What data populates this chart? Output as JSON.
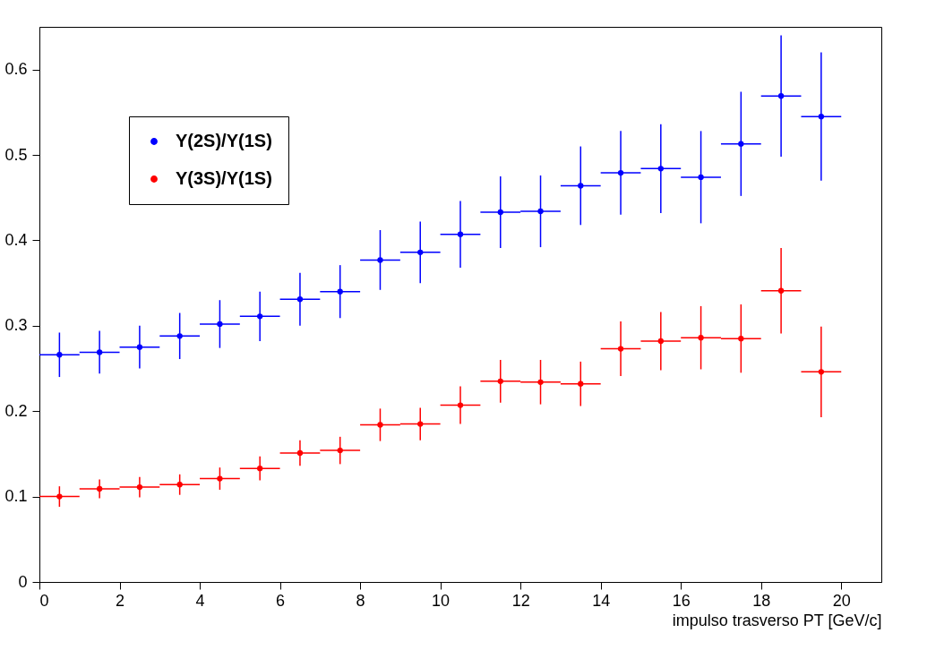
{
  "chart_data": {
    "type": "scatter",
    "xlabel": "impulso trasverso PT [GeV/c]",
    "x": [
      0.5,
      1.5,
      2.5,
      3.5,
      4.5,
      5.5,
      6.5,
      7.5,
      8.5,
      9.5,
      10.5,
      11.5,
      12.5,
      13.5,
      14.5,
      15.5,
      16.5,
      17.5,
      18.5,
      19.5
    ],
    "xlim": [
      0,
      21
    ],
    "ylim": [
      0,
      0.65
    ],
    "xticks": [
      0,
      2,
      4,
      6,
      8,
      10,
      12,
      14,
      16,
      18,
      20
    ],
    "yticks": [
      0,
      0.1,
      0.2,
      0.3,
      0.4,
      0.5,
      0.6
    ],
    "grid": false,
    "legend": "top left",
    "marker": "circle",
    "series": [
      {
        "name": "Υ(2S)/Υ(1S)",
        "color": "#0000ff",
        "values": [
          0.266,
          0.269,
          0.275,
          0.288,
          0.302,
          0.311,
          0.331,
          0.34,
          0.377,
          0.386,
          0.407,
          0.433,
          0.434,
          0.464,
          0.479,
          0.484,
          0.474,
          0.513,
          0.569,
          0.545
        ],
        "errors": [
          0.026,
          0.025,
          0.025,
          0.027,
          0.028,
          0.029,
          0.031,
          0.031,
          0.035,
          0.036,
          0.039,
          0.042,
          0.042,
          0.046,
          0.049,
          0.052,
          0.054,
          0.061,
          0.071,
          0.075
        ],
        "xerrors": [
          0.5,
          0.5,
          0.5,
          0.5,
          0.5,
          0.5,
          0.5,
          0.5,
          0.5,
          0.5,
          0.5,
          0.5,
          0.5,
          0.5,
          0.5,
          0.5,
          0.5,
          0.5,
          0.5,
          0.5
        ]
      },
      {
        "name": "Υ(3S)/Υ(1S)",
        "color": "#ff0000",
        "values": [
          0.1,
          0.109,
          0.111,
          0.114,
          0.121,
          0.133,
          0.151,
          0.154,
          0.184,
          0.185,
          0.207,
          0.235,
          0.234,
          0.232,
          0.273,
          0.282,
          0.286,
          0.285,
          0.341,
          0.246
        ],
        "errors": [
          0.012,
          0.011,
          0.012,
          0.012,
          0.013,
          0.014,
          0.015,
          0.016,
          0.019,
          0.019,
          0.022,
          0.025,
          0.026,
          0.026,
          0.032,
          0.034,
          0.037,
          0.04,
          0.05,
          0.053
        ],
        "xerrors": [
          0.5,
          0.5,
          0.5,
          0.5,
          0.5,
          0.5,
          0.5,
          0.5,
          0.5,
          0.5,
          0.5,
          0.5,
          0.5,
          0.5,
          0.5,
          0.5,
          0.5,
          0.5,
          0.5,
          0.5
        ]
      }
    ]
  }
}
